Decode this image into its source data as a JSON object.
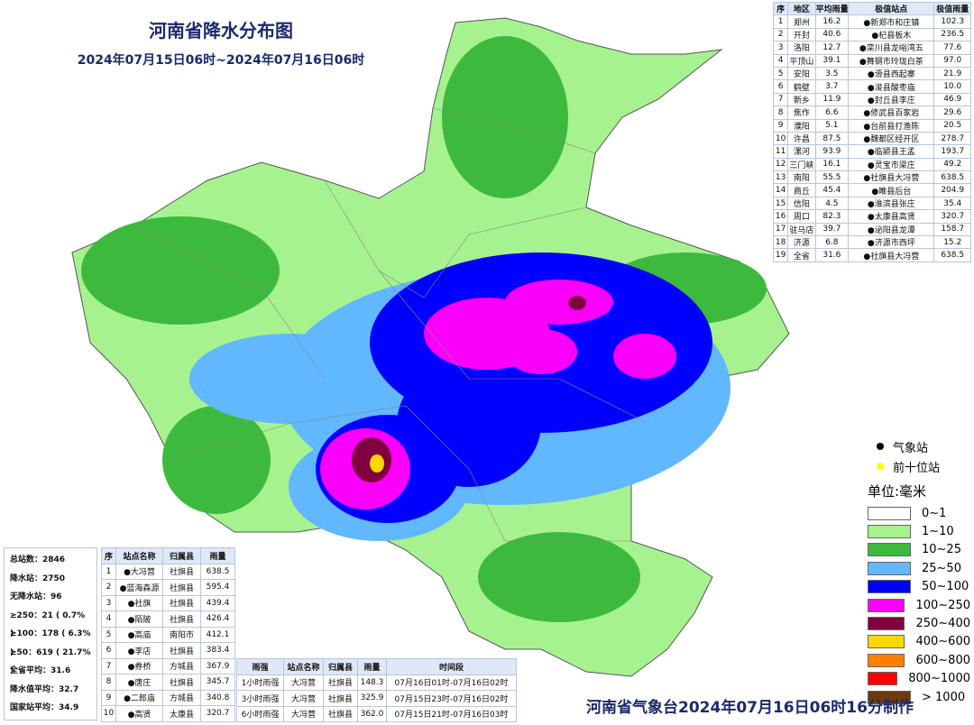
{
  "header": {
    "title": "河南省降水分布图",
    "subtitle": "2024年07月15日06时~2024年07月16日06时"
  },
  "city_table": {
    "headers": [
      "序",
      "地区",
      "平均雨量",
      "极值站点",
      "极值雨量"
    ],
    "widths": [
      16,
      30,
      36,
      94,
      40
    ],
    "rows": [
      [
        "1",
        "郑州",
        "16.2",
        "●新郑市和庄镇",
        "102.3"
      ],
      [
        "2",
        "开封",
        "40.6",
        "●杞县板木",
        "236.5"
      ],
      [
        "3",
        "洛阳",
        "12.7",
        "●栾川县龙峪湾五",
        "77.6"
      ],
      [
        "4",
        "平顶山",
        "39.1",
        "●舞钢市玲珑白茶",
        "97.0"
      ],
      [
        "5",
        "安阳",
        "3.5",
        "●滑县西起寨",
        "21.9"
      ],
      [
        "6",
        "鹤壁",
        "3.7",
        "●浚县酸枣庙",
        "10.0"
      ],
      [
        "7",
        "新乡",
        "11.9",
        "●封丘县李庄",
        "46.9"
      ],
      [
        "8",
        "焦作",
        "6.6",
        "●修武县百家岩",
        "29.6"
      ],
      [
        "9",
        "濮阳",
        "5.1",
        "●台前县打渔陈",
        "20.5"
      ],
      [
        "10",
        "许昌",
        "87.5",
        "●魏都区经开区",
        "278.7"
      ],
      [
        "11",
        "漯河",
        "93.9",
        "●临颍县王孟",
        "193.7"
      ],
      [
        "12",
        "三门峡",
        "16.1",
        "●灵宝市梁庄",
        "49.2"
      ],
      [
        "13",
        "南阳",
        "55.5",
        "●社旗县大冯营",
        "638.5"
      ],
      [
        "14",
        "商丘",
        "45.4",
        "●睢县后台",
        "204.9"
      ],
      [
        "15",
        "信阳",
        "4.5",
        "●淮滨县张庄",
        "35.4"
      ],
      [
        "16",
        "周口",
        "82.3",
        "●太康县高贤",
        "320.7"
      ],
      [
        "17",
        "驻马店",
        "39.7",
        "●泌阳县龙潭",
        "158.7"
      ],
      [
        "18",
        "济源",
        "6.8",
        "●济源市西坪",
        "15.2"
      ],
      [
        "19",
        "全省",
        "31.6",
        "●社旗县大冯营",
        "638.5"
      ]
    ]
  },
  "stats": [
    "总站数：2846",
    "降水站：2750",
    "无降水站：96",
    "≥250：21 ( 0.7% )",
    "≥100：178 ( 6.3% )",
    "≥50：619 ( 21.7% )",
    "全省平均：31.6",
    "降水值平均：32.7",
    "国家站平均：34.9"
  ],
  "top10_table": {
    "headers": [
      "序",
      "站点名称",
      "归属县",
      "雨量"
    ],
    "widths": [
      16,
      52,
      42,
      38
    ],
    "rows": [
      [
        "1",
        "●大冯营",
        "社旗县",
        "638.5"
      ],
      [
        "2",
        "●蓝海森源",
        "社旗县",
        "595.4"
      ],
      [
        "3",
        "●社旗",
        "社旗县",
        "439.4"
      ],
      [
        "4",
        "●陌陂",
        "社旗县",
        "426.4"
      ],
      [
        "5",
        "●高庙",
        "南阳市",
        "412.1"
      ],
      [
        "6",
        "●李店",
        "社旗县",
        "383.4"
      ],
      [
        "7",
        "●券桥",
        "方城县",
        "367.9"
      ],
      [
        "8",
        "●唐庄",
        "社旗县",
        "345.7"
      ],
      [
        "9",
        "●二郎庙",
        "方城县",
        "340.8"
      ],
      [
        "10",
        "●高贤",
        "太康县",
        "320.7"
      ]
    ]
  },
  "intensity_table": {
    "headers": [
      "雨强",
      "站点名称",
      "归属县",
      "雨量",
      "时间段"
    ],
    "widths": [
      52,
      44,
      38,
      32,
      144
    ],
    "rows": [
      [
        "1小时雨强",
        "大冯营",
        "社旗县",
        "148.3",
        "07月16日01时-07月16日02时"
      ],
      [
        "3小时雨强",
        "大冯营",
        "社旗县",
        "325.9",
        "07月15日23时-07月16日02时"
      ],
      [
        "6小时雨强",
        "大冯营",
        "社旗县",
        "362.0",
        "07月15日21时-07月16日03时"
      ]
    ]
  },
  "legend": {
    "markers": [
      {
        "label": "气象站",
        "color": "#000000"
      },
      {
        "label": "前十位站",
        "color": "#ffff00"
      }
    ],
    "unit": "单位:毫米",
    "items": [
      {
        "label": "0~1",
        "color": "#ffffff"
      },
      {
        "label": "1~10",
        "color": "#a6f28f"
      },
      {
        "label": "10~25",
        "color": "#3dba3d"
      },
      {
        "label": "25~50",
        "color": "#61b8ff"
      },
      {
        "label": "50~100",
        "color": "#0000ff"
      },
      {
        "label": "100~250",
        "color": "#fa00fa"
      },
      {
        "label": "250~400",
        "color": "#800040"
      },
      {
        "label": "400~600",
        "color": "#ffd700"
      },
      {
        "label": "600~800",
        "color": "#ff8000"
      },
      {
        "label": "800~1000",
        "color": "#ff0000"
      },
      {
        "label": "> 1000",
        "color": "#6b3a0f"
      }
    ]
  },
  "footer": "河南省气象台2024年07月16日06时16分制作"
}
